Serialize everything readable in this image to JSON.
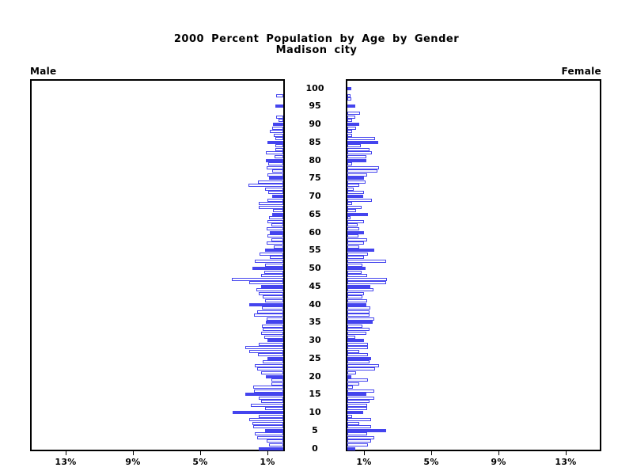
{
  "title": {
    "line1": "2000 Percent Population by Age by Gender",
    "line2": "Madison city"
  },
  "panels": {
    "male_label": "Male",
    "female_label": "Female"
  },
  "axis": {
    "age_tick_labels": [
      "100",
      "95",
      "90",
      "85",
      "80",
      "75",
      "70",
      "65",
      "60",
      "55",
      "50",
      "45",
      "40",
      "35",
      "30",
      "25",
      "20",
      "15",
      "10",
      "5",
      "0"
    ],
    "male_pct_labels": [
      "13%",
      "9%",
      "5%",
      "1%"
    ],
    "female_pct_labels": [
      "1%",
      "5%",
      "9%",
      "13%"
    ]
  },
  "colors": {
    "bar_blue": "#4444ee",
    "axis_black": "#000000",
    "background": "#ffffff"
  },
  "chart_data": {
    "type": "bar",
    "variant": "population-pyramid",
    "title": "2000 Percent Population by Age by Gender",
    "subtitle": "Madison city",
    "orientation": "horizontal",
    "x_unit": "percent of population",
    "x_ticks_each_side": [
      1,
      5,
      9,
      13
    ],
    "xlim_each_side": [
      0,
      15.1
    ],
    "ylabel": "age (single years, 0-100, labeled every 5)",
    "grid": false,
    "legend_position": "none",
    "style_note": "ages divisible by 5 drawn as solid blue bars, other ages hollow white bars with blue outline; male axis reversed (bars grow left), female bars grow right",
    "ages": [
      0,
      1,
      2,
      3,
      4,
      5,
      6,
      7,
      8,
      9,
      10,
      11,
      12,
      13,
      14,
      15,
      16,
      17,
      18,
      19,
      20,
      21,
      22,
      23,
      24,
      25,
      26,
      27,
      28,
      29,
      30,
      31,
      32,
      33,
      34,
      35,
      36,
      37,
      38,
      39,
      40,
      41,
      42,
      43,
      44,
      45,
      46,
      47,
      48,
      49,
      50,
      51,
      52,
      53,
      54,
      55,
      56,
      57,
      58,
      59,
      60,
      61,
      62,
      63,
      64,
      65,
      66,
      67,
      68,
      69,
      70,
      71,
      72,
      73,
      74,
      75,
      76,
      77,
      78,
      79,
      80,
      81,
      82,
      83,
      84,
      85,
      86,
      87,
      88,
      89,
      90,
      91,
      92,
      93,
      94,
      95,
      96,
      97,
      98,
      99,
      100
    ],
    "series": [
      {
        "name": "Male",
        "values": [
          1.45,
          0.85,
          1.0,
          1.55,
          1.7,
          1.1,
          1.8,
          1.85,
          2.0,
          1.45,
          3.0,
          1.1,
          1.95,
          1.3,
          1.45,
          2.25,
          1.75,
          1.8,
          0.7,
          0.7,
          1.05,
          1.3,
          1.55,
          1.7,
          1.2,
          0.95,
          1.5,
          2.0,
          2.25,
          1.45,
          0.95,
          1.15,
          1.3,
          1.2,
          1.25,
          1.05,
          1.0,
          1.75,
          1.55,
          1.25,
          2.0,
          1.1,
          1.2,
          1.45,
          1.6,
          1.3,
          2.0,
          3.05,
          1.3,
          1.15,
          1.85,
          1.1,
          1.7,
          0.8,
          1.4,
          1.1,
          0.55,
          1.0,
          0.7,
          0.95,
          0.8,
          1.0,
          0.7,
          0.95,
          0.85,
          0.65,
          0.6,
          1.45,
          1.45,
          0.95,
          0.65,
          0.9,
          1.1,
          2.05,
          1.5,
          0.85,
          0.95,
          0.65,
          1.0,
          0.9,
          1.05,
          0.5,
          1.05,
          0.45,
          0.45,
          0.95,
          0.45,
          0.55,
          0.8,
          0.65,
          0.6,
          0.3,
          0.4,
          0,
          0,
          0.45,
          0,
          0,
          0.4,
          0,
          0
        ]
      },
      {
        "name": "Female",
        "values": [
          0.45,
          1.2,
          1.4,
          1.6,
          1.17,
          2.3,
          1.4,
          0.7,
          1.4,
          0.26,
          0.95,
          1.17,
          1.17,
          1.33,
          1.6,
          1.15,
          1.6,
          0.35,
          0.7,
          1.2,
          0.25,
          0.5,
          1.67,
          1.87,
          1.3,
          1.4,
          1.2,
          0.7,
          1.2,
          1.2,
          1.0,
          0.46,
          1.14,
          1.33,
          0.9,
          1.5,
          1.6,
          1.3,
          1.3,
          1.35,
          1.15,
          1.17,
          0.9,
          1.0,
          1.56,
          1.35,
          2.3,
          2.35,
          1.17,
          0.85,
          1.1,
          0.9,
          2.3,
          1.0,
          1.2,
          1.6,
          0.7,
          0.98,
          1.17,
          0.67,
          1.0,
          0.7,
          0.62,
          0.98,
          0.2,
          1.2,
          0.5,
          0.85,
          0.26,
          1.45,
          0.93,
          1.0,
          0.38,
          0.7,
          1.1,
          1.0,
          1.17,
          1.8,
          1.9,
          0.3,
          1.15,
          1.12,
          1.45,
          1.33,
          0.8,
          1.85,
          1.65,
          0.3,
          0.26,
          0.5,
          0.7,
          0.3,
          0.47,
          0.74,
          0,
          0.47,
          0,
          0.22,
          0.19,
          0,
          0.22
        ]
      }
    ]
  }
}
